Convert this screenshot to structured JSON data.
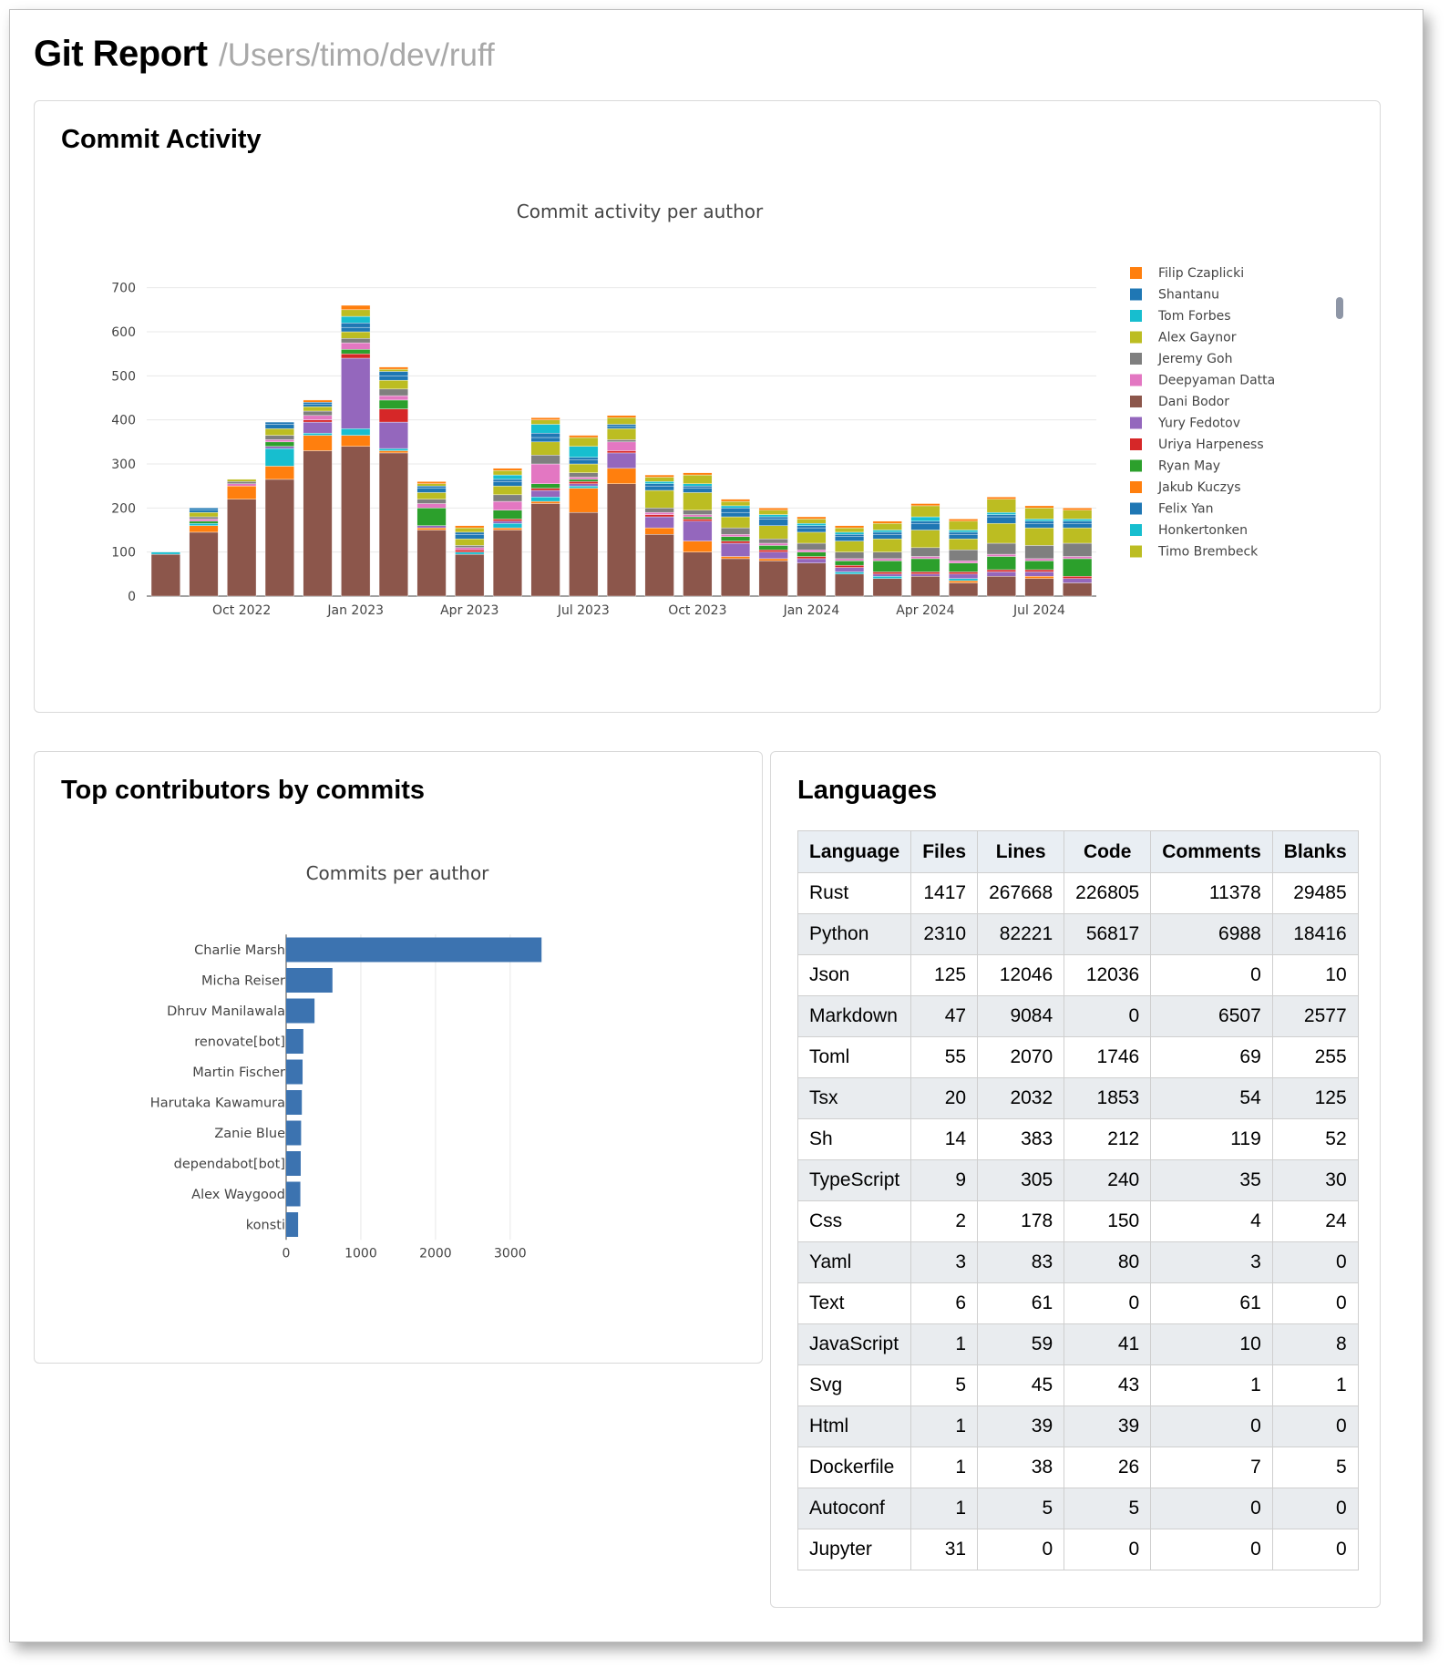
{
  "header": {
    "title": "Git Report",
    "path": "/Users/timo/dev/ruff"
  },
  "activity": {
    "card_title": "Commit Activity",
    "chart_data": {
      "type": "bar",
      "stacked": true,
      "title": "Commit activity per author",
      "xlabel": "",
      "ylabel": "",
      "ylim": [
        0,
        720
      ],
      "yticks": [
        0,
        100,
        200,
        300,
        400,
        500,
        600,
        700
      ],
      "grid": true,
      "legend_placement": "right",
      "categories": [
        "2022-08",
        "2022-09",
        "2022-10",
        "2022-11",
        "2022-12",
        "2023-01",
        "2023-02",
        "2023-03",
        "2023-04",
        "2023-05",
        "2023-06",
        "2023-07",
        "2023-08",
        "2023-09",
        "2023-10",
        "2023-11",
        "2023-12",
        "2024-01",
        "2024-02",
        "2024-03",
        "2024-04",
        "2024-05",
        "2024-06",
        "2024-07",
        "2024-08"
      ],
      "x_tick_labels": [
        {
          "at": "2022-10",
          "label": "Oct 2022"
        },
        {
          "at": "2023-01",
          "label": "Jan 2023"
        },
        {
          "at": "2023-04",
          "label": "Apr 2023"
        },
        {
          "at": "2023-07",
          "label": "Jul 2023"
        },
        {
          "at": "2023-10",
          "label": "Oct 2023"
        },
        {
          "at": "2024-01",
          "label": "Jan 2024"
        },
        {
          "at": "2024-04",
          "label": "Apr 2024"
        },
        {
          "at": "2024-07",
          "label": "Jul 2024"
        }
      ],
      "series": [
        {
          "name": "Dani Bodor",
          "color": "#8c564b",
          "values": [
            95,
            145,
            220,
            265,
            330,
            340,
            325,
            150,
            95,
            150,
            210,
            190,
            255,
            140,
            100,
            85,
            80,
            75,
            50,
            40,
            45,
            30,
            45,
            40,
            30
          ]
        },
        {
          "name": "Jakub Kuczys",
          "color": "#ff7f0e",
          "values": [
            0,
            15,
            30,
            30,
            35,
            25,
            5,
            5,
            0,
            5,
            5,
            55,
            35,
            15,
            25,
            5,
            5,
            0,
            0,
            0,
            0,
            5,
            0,
            5,
            0
          ]
        },
        {
          "name": "Tom Forbes",
          "color": "#17becf",
          "values": [
            5,
            5,
            0,
            40,
            5,
            15,
            5,
            0,
            5,
            10,
            10,
            5,
            0,
            0,
            0,
            0,
            0,
            0,
            5,
            5,
            0,
            5,
            0,
            0,
            0
          ]
        },
        {
          "name": "Yury Fedotov",
          "color": "#9467bd",
          "values": [
            0,
            0,
            0,
            5,
            25,
            160,
            60,
            5,
            0,
            5,
            15,
            5,
            35,
            25,
            45,
            30,
            15,
            10,
            10,
            5,
            5,
            10,
            10,
            10,
            10
          ]
        },
        {
          "name": "Uriya Harpeness",
          "color": "#d62728",
          "values": [
            0,
            0,
            0,
            0,
            5,
            10,
            30,
            0,
            5,
            5,
            5,
            5,
            5,
            5,
            5,
            5,
            5,
            5,
            5,
            5,
            5,
            5,
            5,
            5,
            5
          ]
        },
        {
          "name": "Ryan May",
          "color": "#2ca02c",
          "values": [
            0,
            5,
            0,
            10,
            0,
            10,
            20,
            40,
            0,
            20,
            10,
            5,
            0,
            0,
            5,
            10,
            10,
            10,
            10,
            25,
            30,
            20,
            30,
            20,
            40
          ]
        },
        {
          "name": "Deepyaman Datta",
          "color": "#e377c2",
          "values": [
            0,
            5,
            5,
            5,
            10,
            15,
            10,
            10,
            5,
            20,
            45,
            5,
            20,
            5,
            5,
            5,
            5,
            5,
            5,
            5,
            5,
            5,
            5,
            5,
            5
          ]
        },
        {
          "name": "Jeremy Goh",
          "color": "#7f7f7f",
          "values": [
            0,
            5,
            5,
            10,
            10,
            10,
            15,
            10,
            5,
            15,
            20,
            10,
            5,
            10,
            10,
            15,
            10,
            15,
            15,
            15,
            20,
            25,
            25,
            30,
            30
          ]
        },
        {
          "name": "Alex Gaynor",
          "color": "#bcbd22",
          "values": [
            0,
            10,
            5,
            15,
            10,
            15,
            20,
            15,
            15,
            20,
            30,
            20,
            25,
            40,
            40,
            25,
            30,
            25,
            25,
            30,
            40,
            25,
            45,
            40,
            35
          ]
        },
        {
          "name": "Shantanu",
          "color": "#1f77b4",
          "values": [
            0,
            5,
            0,
            10,
            5,
            10,
            10,
            10,
            10,
            10,
            10,
            10,
            5,
            10,
            10,
            10,
            15,
            10,
            10,
            10,
            15,
            10,
            15,
            10,
            10
          ]
        },
        {
          "name": "Felix Yan",
          "color": "#1f77b4",
          "values": [
            0,
            5,
            0,
            5,
            5,
            10,
            10,
            5,
            5,
            5,
            10,
            5,
            5,
            5,
            5,
            10,
            5,
            5,
            5,
            5,
            5,
            5,
            5,
            5,
            5
          ]
        },
        {
          "name": "Honkertonken",
          "color": "#17becf",
          "values": [
            0,
            0,
            0,
            0,
            0,
            15,
            0,
            0,
            0,
            10,
            20,
            25,
            0,
            5,
            5,
            5,
            5,
            5,
            5,
            5,
            10,
            5,
            5,
            5,
            5
          ]
        },
        {
          "name": "Timo Brembeck",
          "color": "#bcbd22",
          "values": [
            0,
            0,
            0,
            0,
            0,
            15,
            5,
            5,
            10,
            10,
            10,
            20,
            15,
            10,
            20,
            10,
            10,
            10,
            10,
            15,
            25,
            20,
            30,
            25,
            20
          ]
        },
        {
          "name": "Filip Czaplicki",
          "color": "#ff7f0e",
          "values": [
            0,
            0,
            0,
            0,
            5,
            10,
            5,
            5,
            5,
            5,
            5,
            5,
            5,
            5,
            5,
            5,
            5,
            5,
            5,
            5,
            5,
            5,
            5,
            5,
            5
          ]
        }
      ],
      "legend": [
        {
          "name": "Filip Czaplicki",
          "color": "#ff7f0e"
        },
        {
          "name": "Shantanu",
          "color": "#1f77b4"
        },
        {
          "name": "Tom Forbes",
          "color": "#17becf"
        },
        {
          "name": "Alex Gaynor",
          "color": "#bcbd22"
        },
        {
          "name": "Jeremy Goh",
          "color": "#7f7f7f"
        },
        {
          "name": "Deepyaman Datta",
          "color": "#e377c2"
        },
        {
          "name": "Dani Bodor",
          "color": "#8c564b"
        },
        {
          "name": "Yury Fedotov",
          "color": "#9467bd"
        },
        {
          "name": "Uriya Harpeness",
          "color": "#d62728"
        },
        {
          "name": "Ryan May",
          "color": "#2ca02c"
        },
        {
          "name": "Jakub Kuczys",
          "color": "#ff7f0e"
        },
        {
          "name": "Felix Yan",
          "color": "#1f77b4"
        },
        {
          "name": "Honkertonken",
          "color": "#17becf"
        },
        {
          "name": "Timo Brembeck",
          "color": "#bcbd22"
        }
      ]
    }
  },
  "contributors": {
    "card_title": "Top contributors by commits",
    "chart_data": {
      "type": "bar",
      "orientation": "horizontal",
      "title": "Commits per author",
      "xlabel": "",
      "ylabel": "",
      "xlim": [
        0,
        3600
      ],
      "xticks": [
        0,
        1000,
        2000,
        3000
      ],
      "grid": true,
      "bar_color": "#3c73b0",
      "categories": [
        "Charlie Marsh",
        "Micha Reiser",
        "Dhruv Manilawala",
        "renovate[bot]",
        "Martin Fischer",
        "Harutaka Kawamura",
        "Zanie Blue",
        "dependabot[bot]",
        "Alex Waygood",
        "konsti"
      ],
      "values": [
        3420,
        620,
        380,
        230,
        220,
        210,
        200,
        195,
        190,
        160
      ]
    }
  },
  "languages": {
    "card_title": "Languages",
    "columns": [
      "Language",
      "Files",
      "Lines",
      "Code",
      "Comments",
      "Blanks"
    ],
    "rows": [
      [
        "Rust",
        "1417",
        "267668",
        "226805",
        "11378",
        "29485"
      ],
      [
        "Python",
        "2310",
        "82221",
        "56817",
        "6988",
        "18416"
      ],
      [
        "Json",
        "125",
        "12046",
        "12036",
        "0",
        "10"
      ],
      [
        "Markdown",
        "47",
        "9084",
        "0",
        "6507",
        "2577"
      ],
      [
        "Toml",
        "55",
        "2070",
        "1746",
        "69",
        "255"
      ],
      [
        "Tsx",
        "20",
        "2032",
        "1853",
        "54",
        "125"
      ],
      [
        "Sh",
        "14",
        "383",
        "212",
        "119",
        "52"
      ],
      [
        "TypeScript",
        "9",
        "305",
        "240",
        "35",
        "30"
      ],
      [
        "Css",
        "2",
        "178",
        "150",
        "4",
        "24"
      ],
      [
        "Yaml",
        "3",
        "83",
        "80",
        "3",
        "0"
      ],
      [
        "Text",
        "6",
        "61",
        "0",
        "61",
        "0"
      ],
      [
        "JavaScript",
        "1",
        "59",
        "41",
        "10",
        "8"
      ],
      [
        "Svg",
        "5",
        "45",
        "43",
        "1",
        "1"
      ],
      [
        "Html",
        "1",
        "39",
        "39",
        "0",
        "0"
      ],
      [
        "Dockerfile",
        "1",
        "38",
        "26",
        "7",
        "5"
      ],
      [
        "Autoconf",
        "1",
        "5",
        "5",
        "0",
        "0"
      ],
      [
        "Jupyter",
        "31",
        "0",
        "0",
        "0",
        "0"
      ]
    ]
  }
}
